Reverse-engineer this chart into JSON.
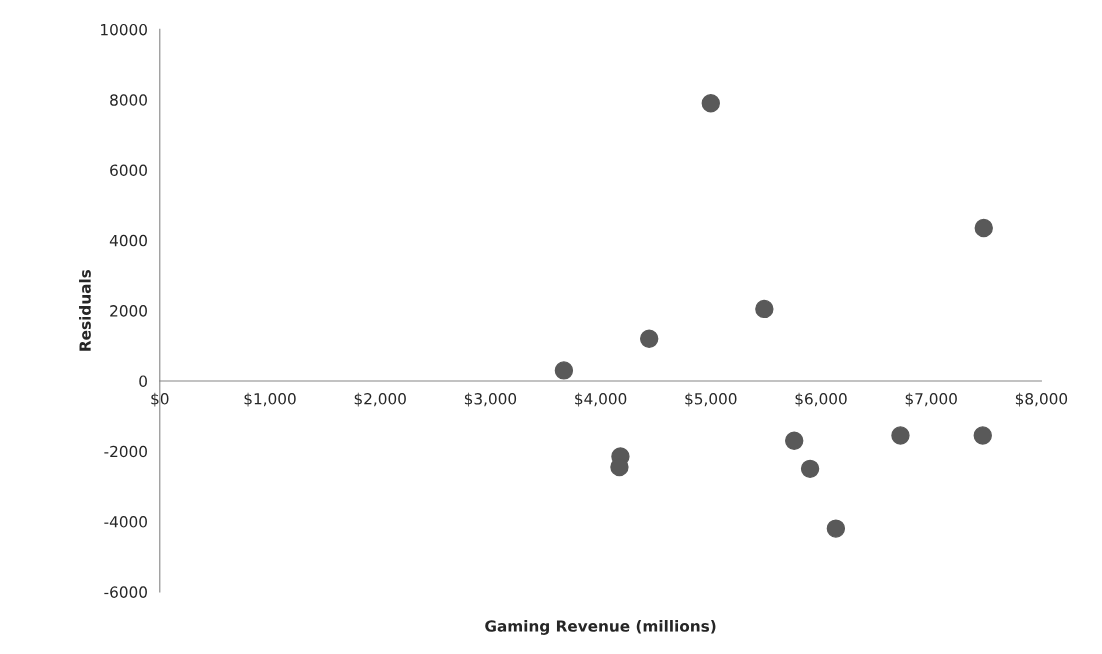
{
  "chart_data": {
    "type": "scatter",
    "xlabel": "Gaming Revenue (millions)",
    "ylabel": "Residuals",
    "x": [
      3667,
      4180,
      4171,
      4441,
      5000,
      5486,
      5757,
      5901,
      6135,
      6721,
      7477,
      7468
    ],
    "values": [
      300,
      -2150,
      -2450,
      1200,
      7900,
      2050,
      -1700,
      -2500,
      -4200,
      -1550,
      4350,
      -1550
    ],
    "color": "#595959",
    "marker": "circle",
    "grid": false,
    "xlim": [
      0,
      8000
    ],
    "xticks": [
      {
        "value": 0,
        "label": "$0"
      },
      {
        "value": 1000,
        "label": "$1,000"
      },
      {
        "value": 2000,
        "label": "$2,000"
      },
      {
        "value": 3000,
        "label": "$3,000"
      },
      {
        "value": 4000,
        "label": "$4,000"
      },
      {
        "value": 5000,
        "label": "$5,000"
      },
      {
        "value": 6000,
        "label": "$6,000"
      },
      {
        "value": 7000,
        "label": "$7,000"
      },
      {
        "value": 8000,
        "label": "$8,000"
      }
    ],
    "ylim": [
      -6000,
      10000
    ],
    "yticks": [
      -6000,
      -4000,
      -2000,
      0,
      2000,
      4000,
      6000,
      8000,
      10000
    ]
  }
}
